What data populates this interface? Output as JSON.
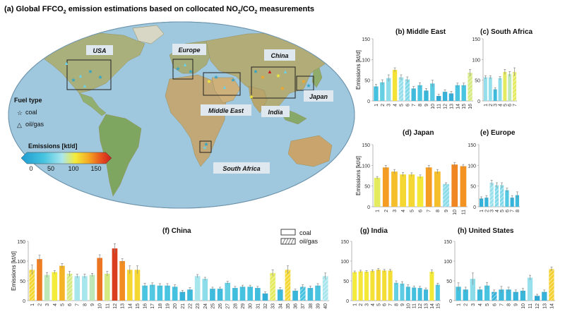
{
  "figure_title": "(a) Global FFCO",
  "figure_title_sub": "2",
  "figure_title_rest": " emission estimations based on collocated NO",
  "figure_title_sub2": "2",
  "figure_title_slash": "/CO",
  "figure_title_sub3": "2",
  "figure_title_end": " measurements",
  "map": {
    "region_labels": [
      "USA",
      "Europe",
      "China",
      "Middle East",
      "India",
      "Japan",
      "South Africa"
    ],
    "legend_fuel_title": "Fuel type",
    "legend_coal": "coal",
    "legend_oilgas": "oil/gas",
    "colorbar_title": "Emissions [kt/d]",
    "colorbar_ticks": [
      "0",
      "50",
      "100",
      "150"
    ],
    "colorbar_colors": [
      "#1f9bd0",
      "#46c4e0",
      "#a8e6ee",
      "#f4ec3a",
      "#f5a623",
      "#e8541e",
      "#c81e1e"
    ]
  },
  "legend_main": {
    "coal": "coal",
    "oilgas": "oil/gas"
  },
  "chart_data": [
    {
      "id": "b",
      "type": "bar",
      "title": "(b) Middle East",
      "ylabel": "Emissions [kt/d]",
      "ylim": [
        0,
        150
      ],
      "yticks": [
        0,
        50,
        100,
        150
      ],
      "categories": [
        "1",
        "2",
        "3",
        "4",
        "5",
        "6",
        "7",
        "8",
        "9",
        "10",
        "11",
        "12",
        "13",
        "14",
        "15",
        "16"
      ],
      "values": [
        35,
        45,
        55,
        75,
        57,
        52,
        30,
        38,
        25,
        42,
        12,
        22,
        18,
        38,
        38,
        68
      ],
      "errors": [
        5,
        6,
        8,
        5,
        6,
        6,
        5,
        6,
        5,
        8,
        4,
        5,
        5,
        5,
        5,
        8
      ],
      "fuel": [
        "coal",
        "coal",
        "coal",
        "coal",
        "oil/gas",
        "oil/gas",
        "coal",
        "coal",
        "coal",
        "coal",
        "coal",
        "coal",
        "coal",
        "coal",
        "coal",
        "oil/gas"
      ]
    },
    {
      "id": "c",
      "type": "bar",
      "title": "(c) South Africa",
      "ylabel": "",
      "ylim": [
        0,
        150
      ],
      "yticks": [
        0,
        50,
        100,
        150
      ],
      "categories": [
        "1",
        "2",
        "3",
        "4",
        "5",
        "6",
        "7"
      ],
      "values": [
        57,
        57,
        28,
        55,
        70,
        65,
        70
      ],
      "errors": [
        4,
        4,
        4,
        4,
        6,
        6,
        10
      ],
      "fuel": [
        "coal",
        "coal",
        "coal",
        "coal",
        "coal",
        "coal",
        "oil/gas"
      ]
    },
    {
      "id": "d",
      "type": "bar",
      "title": "(d) Japan",
      "ylabel": "Emissions [kt/d]",
      "ylim": [
        0,
        150
      ],
      "yticks": [
        0,
        50,
        100,
        150
      ],
      "categories": [
        "1",
        "2",
        "3",
        "4",
        "5",
        "6",
        "7",
        "8",
        "9",
        "10",
        "11"
      ],
      "values": [
        70,
        95,
        85,
        78,
        78,
        73,
        95,
        85,
        55,
        102,
        98
      ],
      "errors": [
        3,
        5,
        5,
        5,
        4,
        4,
        5,
        5,
        3,
        5,
        4
      ],
      "fuel": [
        "coal",
        "coal",
        "coal",
        "coal",
        "coal",
        "coal",
        "coal",
        "coal",
        "oil/gas",
        "coal",
        "coal"
      ]
    },
    {
      "id": "e",
      "type": "bar",
      "title": "(e) Europe",
      "ylabel": "",
      "ylim": [
        0,
        150
      ],
      "yticks": [
        0,
        50,
        100,
        150
      ],
      "categories": [
        "1",
        "2",
        "3",
        "4",
        "5",
        "6",
        "7",
        "8"
      ],
      "values": [
        20,
        22,
        58,
        52,
        52,
        40,
        22,
        28
      ],
      "errors": [
        4,
        5,
        6,
        6,
        6,
        5,
        5,
        8
      ],
      "fuel": [
        "coal",
        "coal",
        "oil/gas",
        "oil/gas",
        "oil/gas",
        "coal",
        "coal",
        "coal"
      ]
    },
    {
      "id": "f",
      "type": "bar",
      "title": "(f) China",
      "ylabel": "Emissions [kt/d]",
      "ylim": [
        0,
        150
      ],
      "yticks": [
        0,
        50,
        100,
        150
      ],
      "categories": [
        "1",
        "2",
        "3",
        "4",
        "5",
        "6",
        "7",
        "8",
        "9",
        "10",
        "11",
        "12",
        "13",
        "14",
        "15",
        "16",
        "17",
        "18",
        "19",
        "20",
        "21",
        "22",
        "23",
        "24",
        "25",
        "26",
        "27",
        "28",
        "29",
        "30",
        "31",
        "32",
        "33",
        "34",
        "35",
        "36",
        "37",
        "38",
        "39",
        "40"
      ],
      "values": [
        78,
        105,
        65,
        72,
        88,
        68,
        62,
        62,
        65,
        108,
        68,
        132,
        100,
        78,
        78,
        38,
        40,
        38,
        38,
        35,
        22,
        28,
        62,
        55,
        30,
        30,
        45,
        32,
        35,
        35,
        32,
        18,
        70,
        28,
        78,
        25,
        35,
        32,
        38,
        62
      ],
      "errors": [
        12,
        10,
        6,
        4,
        6,
        6,
        5,
        5,
        4,
        8,
        6,
        12,
        6,
        10,
        10,
        6,
        5,
        5,
        5,
        5,
        4,
        5,
        4,
        4,
        4,
        4,
        4,
        4,
        4,
        4,
        4,
        4,
        8,
        5,
        10,
        4,
        5,
        5,
        5,
        8
      ],
      "fuel": [
        "oil/gas",
        "coal",
        "coal",
        "coal",
        "coal",
        "oil/gas",
        "coal",
        "coal",
        "coal",
        "coal",
        "coal",
        "coal",
        "coal",
        "coal",
        "coal",
        "coal",
        "coal",
        "coal",
        "coal",
        "coal",
        "coal",
        "coal",
        "coal",
        "coal",
        "coal",
        "coal",
        "coal",
        "coal",
        "coal",
        "coal",
        "coal",
        "coal",
        "oil/gas",
        "coal",
        "oil/gas",
        "coal",
        "oil/gas",
        "coal",
        "coal",
        "oil/gas"
      ]
    },
    {
      "id": "g",
      "type": "bar",
      "title": "(g) India",
      "ylabel": "",
      "ylim": [
        0,
        150
      ],
      "yticks": [
        0,
        50,
        100,
        150
      ],
      "categories": [
        "1",
        "2",
        "3",
        "4",
        "5",
        "6",
        "7",
        "8",
        "9",
        "10",
        "11",
        "12",
        "13",
        "14"
      ],
      "values": [
        72,
        74,
        73,
        75,
        78,
        76,
        76,
        45,
        43,
        35,
        33,
        32,
        28,
        73
      ],
      "errors": [
        3,
        3,
        3,
        3,
        3,
        3,
        3,
        5,
        5,
        5,
        4,
        4,
        4,
        5
      ],
      "fuel": [
        "coal",
        "coal",
        "coal",
        "coal",
        "coal",
        "coal",
        "coal",
        "coal",
        "coal",
        "coal",
        "coal",
        "coal",
        "coal",
        "coal"
      ],
      "extra_bar": {
        "category": "15",
        "value": 40,
        "error": 4
      }
    },
    {
      "id": "h",
      "type": "bar",
      "title": "(h) United States",
      "ylabel": "",
      "ylim": [
        0,
        150
      ],
      "yticks": [
        0,
        50,
        100,
        150
      ],
      "categories": [
        "1",
        "2",
        "3",
        "4",
        "5",
        "6",
        "7",
        "8",
        "9",
        "10",
        "11",
        "12",
        "13",
        "14"
      ],
      "values": [
        35,
        28,
        55,
        28,
        38,
        22,
        28,
        28,
        22,
        25,
        58,
        12,
        22,
        80
      ],
      "errors": [
        10,
        6,
        15,
        6,
        8,
        5,
        8,
        6,
        5,
        6,
        6,
        4,
        5,
        5
      ],
      "fuel": [
        "coal",
        "coal",
        "coal",
        "coal",
        "coal",
        "oil/gas",
        "coal",
        "coal",
        "coal",
        "coal",
        "coal",
        "coal",
        "coal",
        "oil/gas"
      ]
    }
  ]
}
